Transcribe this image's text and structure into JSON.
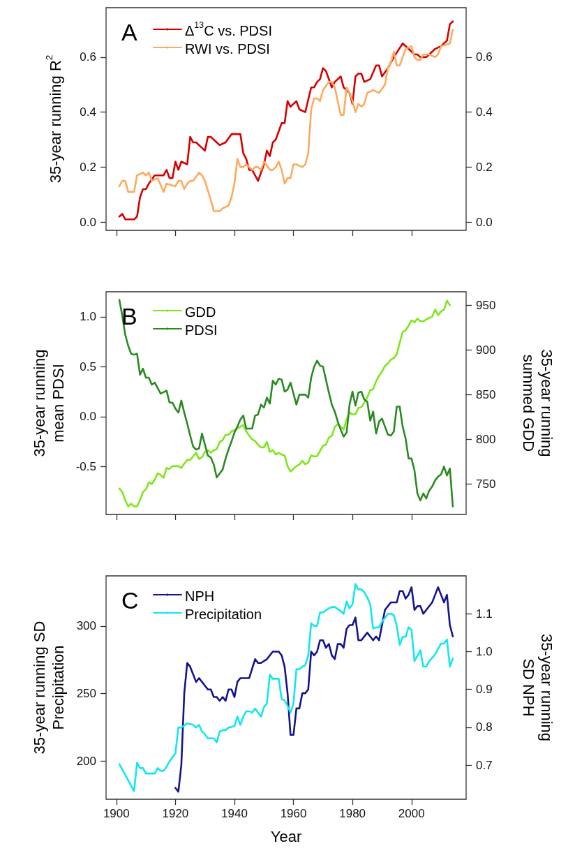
{
  "chart_data": [
    {
      "type": "line",
      "annotations": [
        "A"
      ],
      "ylabel": "35-year running R$^{2}$",
      "legend": "top left",
      "marker": "none",
      "line_style": "solid",
      "tick_labels": "y",
      "xlim": [
        1896.5,
        2018.5
      ],
      "xticks": [
        {
          "value": 1900,
          "label": null
        },
        {
          "value": 1920,
          "label": null
        },
        {
          "value": 1940,
          "label": null
        },
        {
          "value": 1960,
          "label": null
        },
        {
          "value": 1980,
          "label": null
        },
        {
          "value": 2000,
          "label": null
        }
      ],
      "ylim": [
        -0.03,
        0.78
      ],
      "yticks": [
        {
          "value": 0,
          "label": "0.0"
        },
        {
          "value": 0.2,
          "label": "0.2"
        },
        {
          "value": 0.4,
          "label": "0.4"
        },
        {
          "value": 0.6,
          "label": "0.6"
        }
      ],
      "y2lim": [
        -0.03,
        0.78
      ],
      "y2ticks": [
        {
          "value": 0,
          "label": "0.0"
        },
        {
          "value": 0.2,
          "label": "0.2"
        },
        {
          "value": 0.4,
          "label": "0.4"
        },
        {
          "value": 0.6,
          "label": "0.6"
        }
      ],
      "series": [
        {
          "name": "Δ$^{13}$C vs. PDSI",
          "color": "#d40000",
          "x": [
            1901,
            1902,
            1903,
            1905,
            1906,
            1907,
            1908,
            1909,
            1910,
            1911,
            1913,
            1916,
            1917,
            1918,
            1919,
            1920,
            1921,
            1922,
            1924,
            1925,
            1926,
            1927,
            1929,
            1930,
            1931,
            1932,
            1934,
            1935,
            1937,
            1939,
            1940,
            1942,
            1943,
            1944,
            1945,
            1946,
            1948,
            1950,
            1951,
            1952,
            1953,
            1954,
            1956,
            1957,
            1958,
            1959,
            1961,
            1962,
            1964,
            1966,
            1967,
            1968,
            1969,
            1970,
            1971,
            1973,
            1974,
            1976,
            1977,
            1979,
            1980,
            1981,
            1982,
            1983,
            1984,
            1986,
            1988,
            1989,
            1990,
            1992,
            1994,
            1997,
            1999,
            2001,
            2002,
            2003,
            2005,
            2006,
            2008,
            2010,
            2012,
            2013,
            2014
          ],
          "values": [
            0.02,
            0.03,
            0.01,
            0.01,
            0.01,
            0.02,
            0.09,
            0.12,
            0.12,
            0.14,
            0.17,
            0.17,
            0.19,
            0.16,
            0.16,
            0.22,
            0.19,
            0.22,
            0.21,
            0.31,
            0.29,
            0.29,
            0.27,
            0.26,
            0.31,
            0.31,
            0.29,
            0.28,
            0.29,
            0.32,
            0.32,
            0.32,
            0.25,
            0.23,
            0.19,
            0.19,
            0.15,
            0.21,
            0.26,
            0.24,
            0.29,
            0.3,
            0.36,
            0.36,
            0.44,
            0.42,
            0.44,
            0.41,
            0.4,
            0.49,
            0.49,
            0.51,
            0.52,
            0.56,
            0.55,
            0.49,
            0.51,
            0.53,
            0.49,
            0.47,
            0.43,
            0.53,
            0.54,
            0.54,
            0.51,
            0.52,
            0.57,
            0.57,
            0.53,
            0.56,
            0.6,
            0.65,
            0.63,
            0.61,
            0.61,
            0.6,
            0.6,
            0.61,
            0.63,
            0.64,
            0.66,
            0.72,
            0.73
          ]
        },
        {
          "name": "RWI vs. PDSI",
          "color": "#fdaa5e",
          "x": [
            1901,
            1902,
            1903,
            1904,
            1905,
            1906,
            1907,
            1909,
            1910,
            1911,
            1912,
            1914,
            1916,
            1917,
            1920,
            1921,
            1922,
            1923,
            1924,
            1925,
            1926,
            1928,
            1929,
            1930,
            1932,
            1933,
            1934,
            1935,
            1936,
            1938,
            1939,
            1940,
            1941,
            1942,
            1943,
            1944,
            1946,
            1947,
            1948,
            1949,
            1950,
            1952,
            1953,
            1954,
            1955,
            1956,
            1957,
            1958,
            1959,
            1960,
            1961,
            1963,
            1964,
            1965,
            1966,
            1967,
            1968,
            1969,
            1970,
            1972,
            1973,
            1974,
            1975,
            1976,
            1977,
            1978,
            1979,
            1980,
            1981,
            1982,
            1983,
            1984,
            1985,
            1987,
            1989,
            1991,
            1992,
            1993,
            1994,
            1995,
            1996,
            1998,
            2000,
            2001,
            2002,
            2003,
            2004,
            2006,
            2008,
            2009,
            2010,
            2013,
            2014
          ],
          "values": [
            0.13,
            0.15,
            0.15,
            0.11,
            0.11,
            0.11,
            0.17,
            0.18,
            0.17,
            0.18,
            0.15,
            0.16,
            0.11,
            0.14,
            0.13,
            0.15,
            0.15,
            0.12,
            0.14,
            0.15,
            0.15,
            0.18,
            0.17,
            0.15,
            0.08,
            0.04,
            0.04,
            0.04,
            0.05,
            0.06,
            0.09,
            0.14,
            0.23,
            0.2,
            0.2,
            0.21,
            0.19,
            0.2,
            0.2,
            0.19,
            0.22,
            0.19,
            0.19,
            0.2,
            0.22,
            0.19,
            0.14,
            0.16,
            0.16,
            0.21,
            0.21,
            0.2,
            0.21,
            0.25,
            0.41,
            0.45,
            0.45,
            0.44,
            0.48,
            0.51,
            0.51,
            0.49,
            0.44,
            0.39,
            0.39,
            0.49,
            0.47,
            0.44,
            0.4,
            0.43,
            0.42,
            0.43,
            0.47,
            0.48,
            0.47,
            0.5,
            0.56,
            0.58,
            0.62,
            0.57,
            0.57,
            0.63,
            0.64,
            0.6,
            0.59,
            0.59,
            0.61,
            0.61,
            0.6,
            0.61,
            0.64,
            0.65,
            0.7
          ]
        }
      ]
    },
    {
      "type": "line",
      "annotations": [
        "B"
      ],
      "ylabel": "35-year running\nmean PDSI",
      "y2label": "35-year running\nsummed GDD",
      "legend": "top left",
      "marker": "none",
      "line_style": "solid",
      "tick_labels": "y",
      "xlim": [
        1896.5,
        2018.5
      ],
      "xticks": [
        {
          "value": 1900,
          "label": null
        },
        {
          "value": 1920,
          "label": null
        },
        {
          "value": 1940,
          "label": null
        },
        {
          "value": 1960,
          "label": null
        },
        {
          "value": 1980,
          "label": null
        },
        {
          "value": 2000,
          "label": null
        }
      ],
      "ylim": [
        -0.98,
        1.25
      ],
      "yticks": [
        {
          "value": -0.5,
          "label": "-0.5"
        },
        {
          "value": 0,
          "label": "0.0"
        },
        {
          "value": 0.5,
          "label": "0.5"
        },
        {
          "value": 1,
          "label": "1.0"
        }
      ],
      "y2lim": [
        716,
        965
      ],
      "y2ticks": [
        750,
        800,
        850,
        900,
        950
      ],
      "series": [
        {
          "name": "GDD",
          "color": "#7ee61a",
          "axis": "y2",
          "x": [
            1901,
            1902,
            1903,
            1904,
            1905,
            1906,
            1907,
            1908,
            1909,
            1910,
            1911,
            1912,
            1913,
            1914,
            1915,
            1916,
            1917,
            1918,
            1919,
            1921,
            1922,
            1923,
            1924,
            1925,
            1926,
            1927,
            1928,
            1929,
            1930,
            1931,
            1932,
            1933,
            1934,
            1935,
            1936,
            1937,
            1938,
            1939,
            1940,
            1941,
            1942,
            1943,
            1944,
            1945,
            1946,
            1947,
            1948,
            1949,
            1950,
            1951,
            1952,
            1953,
            1954,
            1955,
            1956,
            1957,
            1958,
            1959,
            1960,
            1961,
            1962,
            1963,
            1964,
            1965,
            1966,
            1967,
            1968,
            1969,
            1970,
            1971,
            1972,
            1973,
            1974,
            1975,
            1976,
            1977,
            1978,
            1979,
            1980,
            1981,
            1982,
            1983,
            1984,
            1985,
            1986,
            1987,
            1988,
            1989,
            1990,
            1991,
            1992,
            1993,
            1994,
            1995,
            1996,
            1997,
            1998,
            1999,
            2000,
            2001,
            2002,
            2003,
            2004,
            2005,
            2006,
            2007,
            2008,
            2009,
            2010,
            2011,
            2012,
            2013
          ],
          "values": [
            745,
            741,
            732,
            725,
            728,
            725,
            725,
            732,
            741,
            744,
            752,
            750,
            755,
            762,
            760,
            757,
            768,
            767,
            770,
            770,
            768,
            773,
            777,
            777,
            781,
            785,
            778,
            780,
            786,
            788,
            785,
            788,
            789,
            797,
            799,
            805,
            805,
            809,
            810,
            812,
            814,
            816,
            809,
            804,
            800,
            798,
            794,
            791,
            791,
            797,
            786,
            788,
            783,
            785,
            783,
            782,
            770,
            764,
            767,
            770,
            772,
            776,
            772,
            774,
            782,
            781,
            781,
            787,
            793,
            794,
            802,
            804,
            814,
            817,
            814,
            811,
            822,
            830,
            828,
            828,
            835,
            836,
            841,
            847,
            855,
            856,
            865,
            871,
            876,
            882,
            885,
            889,
            891,
            895,
            908,
            920,
            922,
            927,
            933,
            931,
            935,
            932,
            932,
            934,
            936,
            937,
            945,
            939,
            943,
            945,
            955,
            950
          ]
        },
        {
          "name": "PDSI",
          "color": "#2a8a22",
          "x": [
            1901,
            1902,
            1903,
            1904,
            1905,
            1906,
            1907,
            1908,
            1909,
            1910,
            1911,
            1912,
            1913,
            1915,
            1917,
            1918,
            1919,
            1920,
            1921,
            1922,
            1923,
            1924,
            1925,
            1926,
            1927,
            1928,
            1929,
            1930,
            1931,
            1932,
            1933,
            1934,
            1935,
            1936,
            1937,
            1938,
            1939,
            1940,
            1941,
            1942,
            1943,
            1944,
            1946,
            1947,
            1948,
            1949,
            1950,
            1951,
            1952,
            1953,
            1954,
            1955,
            1956,
            1957,
            1958,
            1959,
            1960,
            1961,
            1962,
            1964,
            1965,
            1966,
            1967,
            1968,
            1969,
            1970,
            1971,
            1972,
            1973,
            1974,
            1975,
            1976,
            1977,
            1978,
            1979,
            1980,
            1981,
            1982,
            1983,
            1984,
            1985,
            1986,
            1987,
            1988,
            1989,
            1990,
            1991,
            1992,
            1993,
            1994,
            1995,
            1996,
            1997,
            1998,
            1999,
            2000,
            2001,
            2002,
            2003,
            2004,
            2005,
            2006,
            2007,
            2008,
            2009,
            2010,
            2011,
            2012,
            2013,
            2014
          ],
          "values": [
            1.17,
            1.01,
            0.82,
            0.71,
            0.63,
            0.62,
            0.63,
            0.42,
            0.48,
            0.39,
            0.39,
            0.32,
            0.34,
            0.23,
            0.26,
            0.14,
            0.14,
            0.08,
            0.04,
            0.16,
            0.04,
            -0.07,
            -0.19,
            -0.3,
            -0.33,
            -0.32,
            -0.17,
            -0.28,
            -0.39,
            -0.41,
            -0.48,
            -0.61,
            -0.57,
            -0.53,
            -0.42,
            -0.33,
            -0.25,
            -0.16,
            -0.1,
            -0.03,
            0.01,
            -0.12,
            -0.12,
            0.01,
            0.02,
            0.12,
            0.09,
            0.19,
            0.13,
            0.36,
            0.32,
            0.38,
            0.37,
            0.25,
            0.27,
            0.34,
            0.23,
            0.12,
            0.22,
            0.22,
            0.19,
            0.39,
            0.5,
            0.56,
            0.51,
            0.5,
            0.37,
            0.24,
            0.12,
            0.05,
            -0.05,
            -0.13,
            -0.2,
            -0.16,
            0.12,
            0.25,
            0.11,
            0.24,
            0.25,
            0.17,
            0.15,
            -0.04,
            0.05,
            -0.17,
            -0.05,
            -0.02,
            -0.1,
            -0.18,
            -0.19,
            -0.15,
            0.1,
            0.1,
            -0.1,
            -0.22,
            -0.42,
            -0.42,
            -0.54,
            -0.77,
            -0.84,
            -0.77,
            -0.82,
            -0.74,
            -0.7,
            -0.64,
            -0.6,
            -0.58,
            -0.5,
            -0.59,
            -0.52,
            -0.9
          ]
        }
      ]
    },
    {
      "type": "line",
      "annotations": [
        "C"
      ],
      "xlabel": "Year",
      "ylabel": "35-year running SD\nPrecipitation",
      "y2label": "35-year running\nSD NPH",
      "legend": "top left",
      "marker": "none",
      "line_style": "solid",
      "xlim": [
        1896.5,
        2018.5
      ],
      "xticks": [
        1900,
        1920,
        1940,
        1960,
        1980,
        2000
      ],
      "ylim": [
        172,
        337
      ],
      "yticks": [
        200,
        250,
        300
      ],
      "y2lim": [
        0.61,
        1.2
      ],
      "y2ticks": [
        0.7,
        0.8,
        0.9,
        {
          "value": 1,
          "label": "1.0"
        },
        1.1
      ],
      "series": [
        {
          "name": "NPH",
          "color": "#14148c",
          "axis": "y2",
          "x": [
            1920,
            1921,
            1922,
            1923,
            1924,
            1925,
            1926,
            1927,
            1928,
            1929,
            1930,
            1931,
            1932,
            1933,
            1934,
            1935,
            1936,
            1937,
            1938,
            1939,
            1940,
            1941,
            1942,
            1944,
            1945,
            1947,
            1948,
            1949,
            1951,
            1953,
            1954,
            1955,
            1956,
            1957,
            1958,
            1959,
            1960,
            1961,
            1962,
            1963,
            1964,
            1965,
            1966,
            1967,
            1968,
            1969,
            1970,
            1971,
            1972,
            1973,
            1974,
            1975,
            1976,
            1977,
            1978,
            1979,
            1980,
            1981,
            1982,
            1983,
            1985,
            1986,
            1987,
            1988,
            1989,
            1990,
            1991,
            1992,
            1993,
            1994,
            1995,
            1996,
            1997,
            1998,
            1999,
            2000,
            2001,
            2002,
            2003,
            2004,
            2005,
            2007,
            2008,
            2009,
            2010,
            2011,
            2012,
            2013,
            2014
          ],
          "values": [
            0.64,
            0.63,
            0.7,
            0.89,
            0.97,
            0.96,
            0.94,
            0.92,
            0.93,
            0.92,
            0.91,
            0.9,
            0.9,
            0.88,
            0.88,
            0.87,
            0.88,
            0.87,
            0.9,
            0.9,
            0.88,
            0.92,
            0.93,
            0.93,
            0.93,
            0.98,
            0.97,
            0.97,
            0.98,
            1.0,
            1.0,
            1.0,
            0.99,
            0.96,
            0.89,
            0.78,
            0.78,
            0.85,
            0.85,
            0.89,
            0.89,
            0.9,
            1.0,
            0.99,
            1.0,
            1.03,
            1.03,
            1.01,
            1.02,
            0.99,
            0.98,
            1.02,
            1.02,
            1.01,
            1.06,
            1.07,
            1.07,
            1.09,
            1.03,
            1.03,
            1.05,
            1.04,
            1.03,
            1.04,
            1.03,
            1.07,
            1.11,
            1.12,
            1.13,
            1.13,
            1.13,
            1.16,
            1.16,
            1.14,
            1.15,
            1.17,
            1.11,
            1.12,
            1.12,
            1.1,
            1.11,
            1.13,
            1.15,
            1.17,
            1.15,
            1.13,
            1.15,
            1.07,
            1.04
          ]
        },
        {
          "name": "Precipitation",
          "color": "#14e6ee",
          "x": [
            1901,
            1906,
            1907,
            1908,
            1909,
            1910,
            1912,
            1913,
            1914,
            1915,
            1916,
            1917,
            1918,
            1919,
            1920,
            1921,
            1922,
            1924,
            1926,
            1927,
            1928,
            1929,
            1930,
            1931,
            1933,
            1934,
            1935,
            1936,
            1937,
            1938,
            1940,
            1941,
            1942,
            1943,
            1944,
            1945,
            1946,
            1947,
            1948,
            1949,
            1950,
            1951,
            1952,
            1953,
            1955,
            1956,
            1957,
            1958,
            1959,
            1960,
            1961,
            1962,
            1963,
            1964,
            1965,
            1966,
            1967,
            1968,
            1969,
            1970,
            1972,
            1973,
            1974,
            1976,
            1977,
            1978,
            1979,
            1980,
            1981,
            1982,
            1983,
            1984,
            1985,
            1986,
            1987,
            1988,
            1989,
            1990,
            1992,
            1993,
            1994,
            1995,
            1996,
            1997,
            1998,
            1999,
            2000,
            2001,
            2003,
            2004,
            2005,
            2006,
            2008,
            2009,
            2010,
            2011,
            2012,
            2013,
            2014
          ],
          "values": [
            198,
            178,
            199,
            195,
            195,
            191,
            191,
            191,
            195,
            193,
            193,
            196,
            200,
            203,
            206,
            225,
            225,
            228,
            227,
            225,
            227,
            222,
            220,
            217,
            217,
            214,
            222,
            223,
            223,
            225,
            226,
            233,
            227,
            233,
            237,
            237,
            236,
            239,
            236,
            233,
            240,
            243,
            264,
            261,
            261,
            246,
            245,
            241,
            236,
            243,
            268,
            268,
            270,
            271,
            278,
            302,
            300,
            300,
            310,
            310,
            313,
            314,
            314,
            311,
            309,
            318,
            313,
            316,
            331,
            327,
            327,
            325,
            321,
            316,
            298,
            299,
            299,
            303,
            309,
            309,
            308,
            300,
            286,
            292,
            292,
            299,
            297,
            274,
            282,
            270,
            270,
            274,
            279,
            283,
            287,
            287,
            290,
            270,
            276
          ]
        }
      ]
    }
  ]
}
